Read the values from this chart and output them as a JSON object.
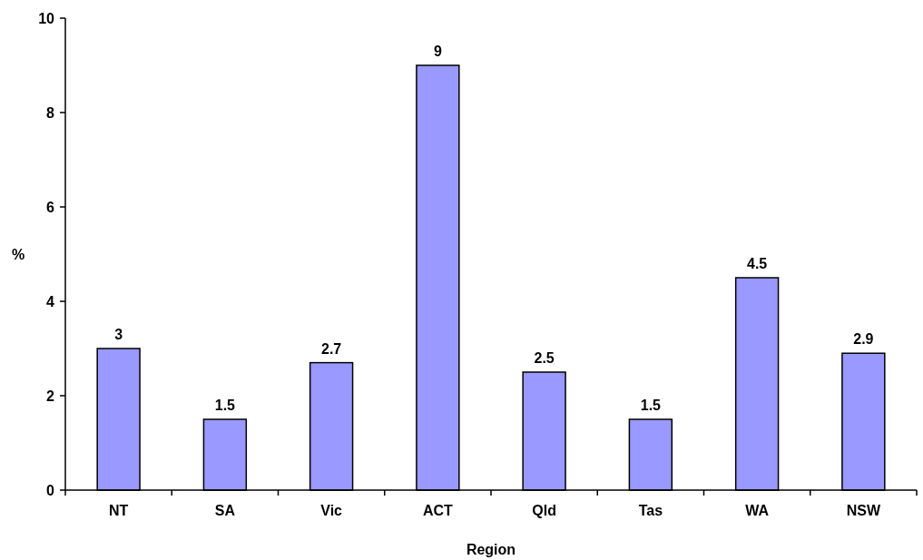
{
  "chart_data": {
    "type": "bar",
    "xlabel": "Region",
    "ylabel": "%",
    "categories": [
      "NT",
      "SA",
      "Vic",
      "ACT",
      "Qld",
      "Tas",
      "WA",
      "NSW"
    ],
    "values": [
      3,
      1.5,
      2.7,
      9,
      2.5,
      1.5,
      4.5,
      2.9
    ],
    "color": "#9999ff",
    "ylim": [
      0,
      10
    ],
    "yticks": [
      0,
      2,
      4,
      6,
      8,
      10
    ],
    "data_labels": true,
    "grid": false
  }
}
